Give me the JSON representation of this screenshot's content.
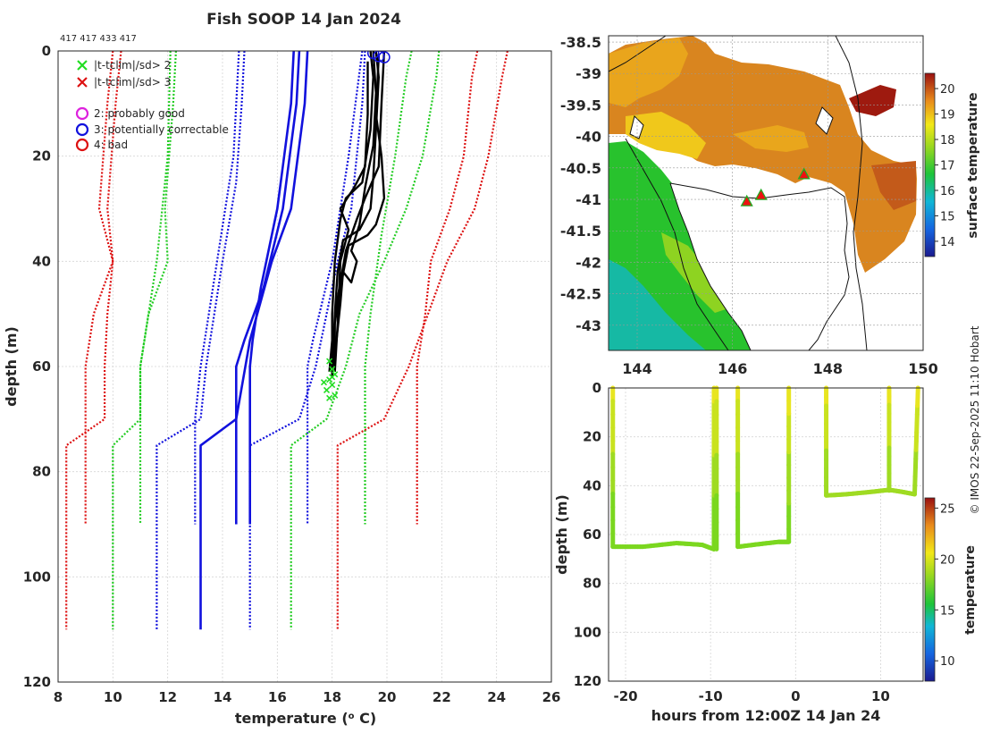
{
  "figure": {
    "title": "Fish SOOP 14 Jan 2024",
    "profile_ids": "417 417 433 417",
    "credit": "© IMOS 22-Sep-2025 11:10 Hobart"
  },
  "chart_data": [
    {
      "id": "profile",
      "type": "line",
      "title": "Fish SOOP 14 Jan 2024",
      "xlabel": "temperature (",
      "xlabel_sup": "o",
      "xlabel_tail": " C)",
      "ylabel": "depth (m)",
      "xlim": [
        8,
        26
      ],
      "ylim": [
        0,
        120
      ],
      "y_reversed": true,
      "grid": true,
      "xticks": [
        8,
        10,
        12,
        14,
        16,
        18,
        20,
        22,
        24,
        26
      ],
      "yticks": [
        0,
        20,
        40,
        60,
        80,
        100,
        120
      ],
      "legend": [
        {
          "label": "|t-tclim|/sd> 2",
          "marker": "x",
          "color": "#22dd22"
        },
        {
          "label": "|t-tclim|/sd> 3",
          "marker": "x",
          "color": "#dd1111"
        },
        {
          "label": "2: probably good",
          "marker": "o",
          "color": "#dd22dd"
        },
        {
          "label": "3: potentially correctable",
          "marker": "o",
          "color": "#1111dd"
        },
        {
          "label": "4: bad",
          "marker": "o",
          "color": "#dd1111"
        }
      ],
      "series": [
        {
          "name": "clim -3sd left",
          "color": "#dd1111",
          "dash": true,
          "points": [
            [
              10,
              0
            ],
            [
              9.8,
              10
            ],
            [
              9.5,
              30
            ],
            [
              10,
              40
            ],
            [
              9.8,
              50
            ],
            [
              9.7,
              60
            ],
            [
              9.7,
              70
            ],
            [
              8.3,
              75
            ],
            [
              8.3,
              110
            ]
          ]
        },
        {
          "name": "clim -3sd left b",
          "color": "#dd1111",
          "dash": true,
          "points": [
            [
              10.3,
              0
            ],
            [
              10.1,
              10
            ],
            [
              9.8,
              30
            ],
            [
              10,
              40
            ],
            [
              9.3,
              50
            ],
            [
              9,
              60
            ],
            [
              9,
              90
            ]
          ]
        },
        {
          "name": "clim -2sd left",
          "color": "#22cc22",
          "dash": true,
          "points": [
            [
              12.3,
              0
            ],
            [
              12.2,
              10
            ],
            [
              11.9,
              30
            ],
            [
              12,
              40
            ],
            [
              11.3,
              50
            ],
            [
              11,
              60
            ],
            [
              11,
              70
            ],
            [
              10,
              75
            ],
            [
              10,
              110
            ]
          ]
        },
        {
          "name": "clim -2sd left b",
          "color": "#22cc22",
          "dash": true,
          "points": [
            [
              12.1,
              0
            ],
            [
              12,
              20
            ],
            [
              11.6,
              40
            ],
            [
              11,
              60
            ],
            [
              11,
              90
            ]
          ]
        },
        {
          "name": "clim -1sd left",
          "color": "#1111dd",
          "dash": true,
          "points": [
            [
              14.8,
              0
            ],
            [
              14.7,
              10
            ],
            [
              14.5,
              25
            ],
            [
              14,
              40
            ],
            [
              13.4,
              60
            ],
            [
              13.2,
              70
            ],
            [
              11.6,
              75
            ],
            [
              11.6,
              110
            ]
          ]
        },
        {
          "name": "clim -1sd left b",
          "color": "#1111dd",
          "dash": true,
          "points": [
            [
              14.6,
              0
            ],
            [
              14.4,
              20
            ],
            [
              13.8,
              40
            ],
            [
              13.2,
              60
            ],
            [
              13,
              70
            ],
            [
              13,
              90
            ]
          ]
        },
        {
          "name": "clim mean",
          "color": "#1111dd",
          "dash": false,
          "points": [
            [
              17.1,
              0
            ],
            [
              17,
              10
            ],
            [
              16.5,
              30
            ],
            [
              15.8,
              40
            ],
            [
              15,
              55
            ],
            [
              14.5,
              70
            ],
            [
              13.2,
              75
            ],
            [
              13.2,
              110
            ]
          ]
        },
        {
          "name": "clim mean b",
          "color": "#1111dd",
          "dash": false,
          "points": [
            [
              16.8,
              0
            ],
            [
              16.7,
              10
            ],
            [
              16.2,
              30
            ],
            [
              15.5,
              45
            ],
            [
              14.8,
              55
            ],
            [
              14.5,
              60
            ],
            [
              14.5,
              90
            ]
          ]
        },
        {
          "name": "clim mean c",
          "color": "#1111dd",
          "dash": false,
          "points": [
            [
              16.6,
              0
            ],
            [
              16.5,
              10
            ],
            [
              16,
              30
            ],
            [
              15.4,
              45
            ],
            [
              15.1,
              55
            ],
            [
              15,
              60
            ],
            [
              15,
              90
            ]
          ]
        },
        {
          "name": "clim +1sd right",
          "color": "#1111dd",
          "dash": true,
          "points": [
            [
              19.2,
              0
            ],
            [
              19.1,
              10
            ],
            [
              18.7,
              30
            ],
            [
              18.2,
              40
            ],
            [
              17.8,
              50
            ],
            [
              17.4,
              60
            ],
            [
              16.8,
              70
            ],
            [
              15,
              75
            ],
            [
              15,
              110
            ]
          ]
        },
        {
          "name": "clim +1sd right b",
          "color": "#1111dd",
          "dash": true,
          "points": [
            [
              19.1,
              0
            ],
            [
              18.6,
              20
            ],
            [
              18,
              40
            ],
            [
              17.3,
              55
            ],
            [
              17.1,
              60
            ],
            [
              17.1,
              90
            ]
          ]
        },
        {
          "name": "clim +2sd right",
          "color": "#22cc22",
          "dash": true,
          "points": [
            [
              21.9,
              0
            ],
            [
              21.8,
              5
            ],
            [
              21.3,
              20
            ],
            [
              20.7,
              30
            ],
            [
              19.9,
              40
            ],
            [
              19,
              50
            ],
            [
              18.5,
              60
            ],
            [
              17.8,
              70
            ],
            [
              16.5,
              75
            ],
            [
              16.5,
              110
            ]
          ]
        },
        {
          "name": "clim +2sd right b",
          "color": "#22cc22",
          "dash": true,
          "points": [
            [
              20.9,
              0
            ],
            [
              20.7,
              5
            ],
            [
              20.3,
              20
            ],
            [
              19.8,
              35
            ],
            [
              19.4,
              50
            ],
            [
              19.2,
              60
            ],
            [
              19.2,
              90
            ]
          ]
        },
        {
          "name": "clim +3sd right",
          "color": "#dd1111",
          "dash": true,
          "points": [
            [
              24.4,
              0
            ],
            [
              24.2,
              5
            ],
            [
              23.7,
              20
            ],
            [
              23.2,
              30
            ],
            [
              22.2,
              40
            ],
            [
              21.5,
              50
            ],
            [
              20.8,
              60
            ],
            [
              19.9,
              70
            ],
            [
              18.2,
              75
            ],
            [
              18.2,
              110
            ]
          ]
        },
        {
          "name": "clim +3sd right b",
          "color": "#dd1111",
          "dash": true,
          "points": [
            [
              23.3,
              0
            ],
            [
              23.1,
              5
            ],
            [
              22.8,
              20
            ],
            [
              22.3,
              30
            ],
            [
              21.6,
              40
            ],
            [
              21.4,
              50
            ],
            [
              21.1,
              60
            ],
            [
              21.1,
              90
            ]
          ]
        },
        {
          "name": "obs 1",
          "color": "#000000",
          "dash": false,
          "points": [
            [
              19.4,
              0
            ],
            [
              19.5,
              5
            ],
            [
              19.4,
              15
            ],
            [
              19.1,
              25
            ],
            [
              18.5,
              28
            ],
            [
              18.3,
              32
            ],
            [
              18.1,
              40
            ],
            [
              18,
              50
            ],
            [
              18,
              62
            ]
          ]
        },
        {
          "name": "obs 2",
          "color": "#000000",
          "dash": false,
          "points": [
            [
              19.6,
              0
            ],
            [
              19.7,
              5
            ],
            [
              19.6,
              15
            ],
            [
              19.5,
              24
            ],
            [
              19.4,
              30
            ],
            [
              19,
              34
            ],
            [
              18.4,
              36
            ],
            [
              18.2,
              42
            ],
            [
              18.1,
              50
            ],
            [
              18,
              62
            ]
          ]
        },
        {
          "name": "obs 3",
          "color": "#000000",
          "dash": false,
          "points": [
            [
              19.9,
              0
            ],
            [
              19.8,
              10
            ],
            [
              19.7,
              22
            ],
            [
              19.2,
              28
            ],
            [
              18.9,
              32
            ],
            [
              18.5,
              38
            ],
            [
              18.3,
              44
            ],
            [
              18.1,
              50
            ],
            [
              18.1,
              60
            ]
          ]
        },
        {
          "name": "obs 4",
          "color": "#000000",
          "dash": false,
          "points": [
            [
              19.3,
              2
            ],
            [
              19.3,
              12
            ],
            [
              19.2,
              22
            ],
            [
              18.8,
              26
            ],
            [
              18.3,
              30
            ],
            [
              18.6,
              34
            ],
            [
              18.3,
              40
            ],
            [
              18.2,
              52
            ],
            [
              18.1,
              61
            ]
          ]
        },
        {
          "name": "obs 5",
          "color": "#000000",
          "dash": false,
          "points": [
            [
              19.5,
              0
            ],
            [
              19.6,
              8
            ],
            [
              19.5,
              18
            ],
            [
              19.2,
              26
            ],
            [
              19,
              33
            ],
            [
              18.7,
              38
            ],
            [
              18.9,
              40
            ],
            [
              18.7,
              44
            ],
            [
              18.4,
              42
            ],
            [
              18.3,
              48
            ],
            [
              18.1,
              58
            ]
          ]
        },
        {
          "name": "obs 6",
          "color": "#000000",
          "dash": false,
          "points": [
            [
              19.7,
              1
            ],
            [
              19.6,
              12
            ],
            [
              19.8,
              20
            ],
            [
              19.9,
              28
            ],
            [
              19.6,
              33
            ],
            [
              19.3,
              35
            ],
            [
              18.6,
              37
            ],
            [
              18.3,
              45
            ],
            [
              18,
              55
            ],
            [
              17.9,
              61
            ]
          ]
        }
      ],
      "flags_green": [
        [
          17.9,
          59
        ],
        [
          18,
          60.5
        ],
        [
          18.1,
          61.5
        ],
        [
          17.9,
          62.5
        ],
        [
          18,
          63.5
        ],
        [
          17.8,
          64.5
        ],
        [
          18.1,
          65.5
        ],
        [
          17.9,
          66
        ],
        [
          18,
          62
        ],
        [
          17.7,
          63
        ]
      ],
      "flags_blue_circle": [
        [
          19.5,
          0.4
        ],
        [
          19.7,
          1
        ],
        [
          19.9,
          1.2
        ]
      ]
    },
    {
      "id": "map",
      "type": "heatmap",
      "xlim": [
        143.4,
        150
      ],
      "ylim": [
        -43.4,
        -38.4
      ],
      "xticks": [
        "144",
        "146",
        "148",
        "150"
      ],
      "xtick_values": [
        144,
        146,
        148,
        150
      ],
      "yticks": [
        "-38.5",
        "-39",
        "-39.5",
        "-40",
        "-40.5",
        "-41",
        "-41.5",
        "-42",
        "-42.5",
        "-43"
      ],
      "ytick_values": [
        -38.5,
        -39,
        -39.5,
        -40,
        -40.5,
        -41,
        -41.5,
        -42,
        -42.5,
        -43
      ],
      "colorbar_label": "surface temperature",
      "colorbar_range": [
        13.4,
        20.6
      ],
      "colorbar_ticks": [
        "14",
        "15",
        "16",
        "17",
        "18",
        "19",
        "20"
      ],
      "colorbar_tick_values": [
        14,
        15,
        16,
        17,
        18,
        19,
        20
      ],
      "stations": [
        [
          147.5,
          -40.6
        ],
        [
          146.6,
          -40.93
        ],
        [
          146.3,
          -41.03
        ]
      ]
    },
    {
      "id": "timeseries",
      "type": "scatter",
      "xlabel": "hours from 12:00Z 14 Jan 24",
      "ylabel": "depth (m)",
      "xlim": [
        -22,
        15
      ],
      "ylim": [
        0,
        120
      ],
      "y_reversed": true,
      "xticks": [
        -20,
        -10,
        0,
        10
      ],
      "yticks": [
        0,
        20,
        40,
        60,
        80,
        100,
        120
      ],
      "colorbar_label": "temperature",
      "colorbar_range": [
        8,
        26
      ],
      "colorbar_ticks": [
        10,
        15,
        20,
        25
      ],
      "tracks": [
        [
          [
            -21.5,
            0
          ],
          [
            -21.5,
            65
          ],
          [
            -18,
            65
          ],
          [
            -14,
            63.5
          ],
          [
            -11,
            64.2
          ],
          [
            -9.6,
            66
          ],
          [
            -9.6,
            0
          ]
        ],
        [
          [
            -9.3,
            0
          ],
          [
            -9.3,
            66
          ]
        ],
        [
          [
            -6.8,
            0
          ],
          [
            -6.8,
            65
          ],
          [
            -4.5,
            64
          ],
          [
            -2,
            63
          ],
          [
            -0.8,
            63
          ],
          [
            -0.8,
            0
          ]
        ],
        [
          [
            3.6,
            0
          ],
          [
            3.6,
            44
          ],
          [
            6,
            43.5
          ],
          [
            9,
            42.5
          ],
          [
            11,
            41.7
          ],
          [
            12.5,
            42.5
          ],
          [
            14,
            43.5
          ],
          [
            14.4,
            0
          ]
        ],
        [
          [
            11,
            0
          ],
          [
            11,
            42
          ]
        ]
      ]
    }
  ]
}
